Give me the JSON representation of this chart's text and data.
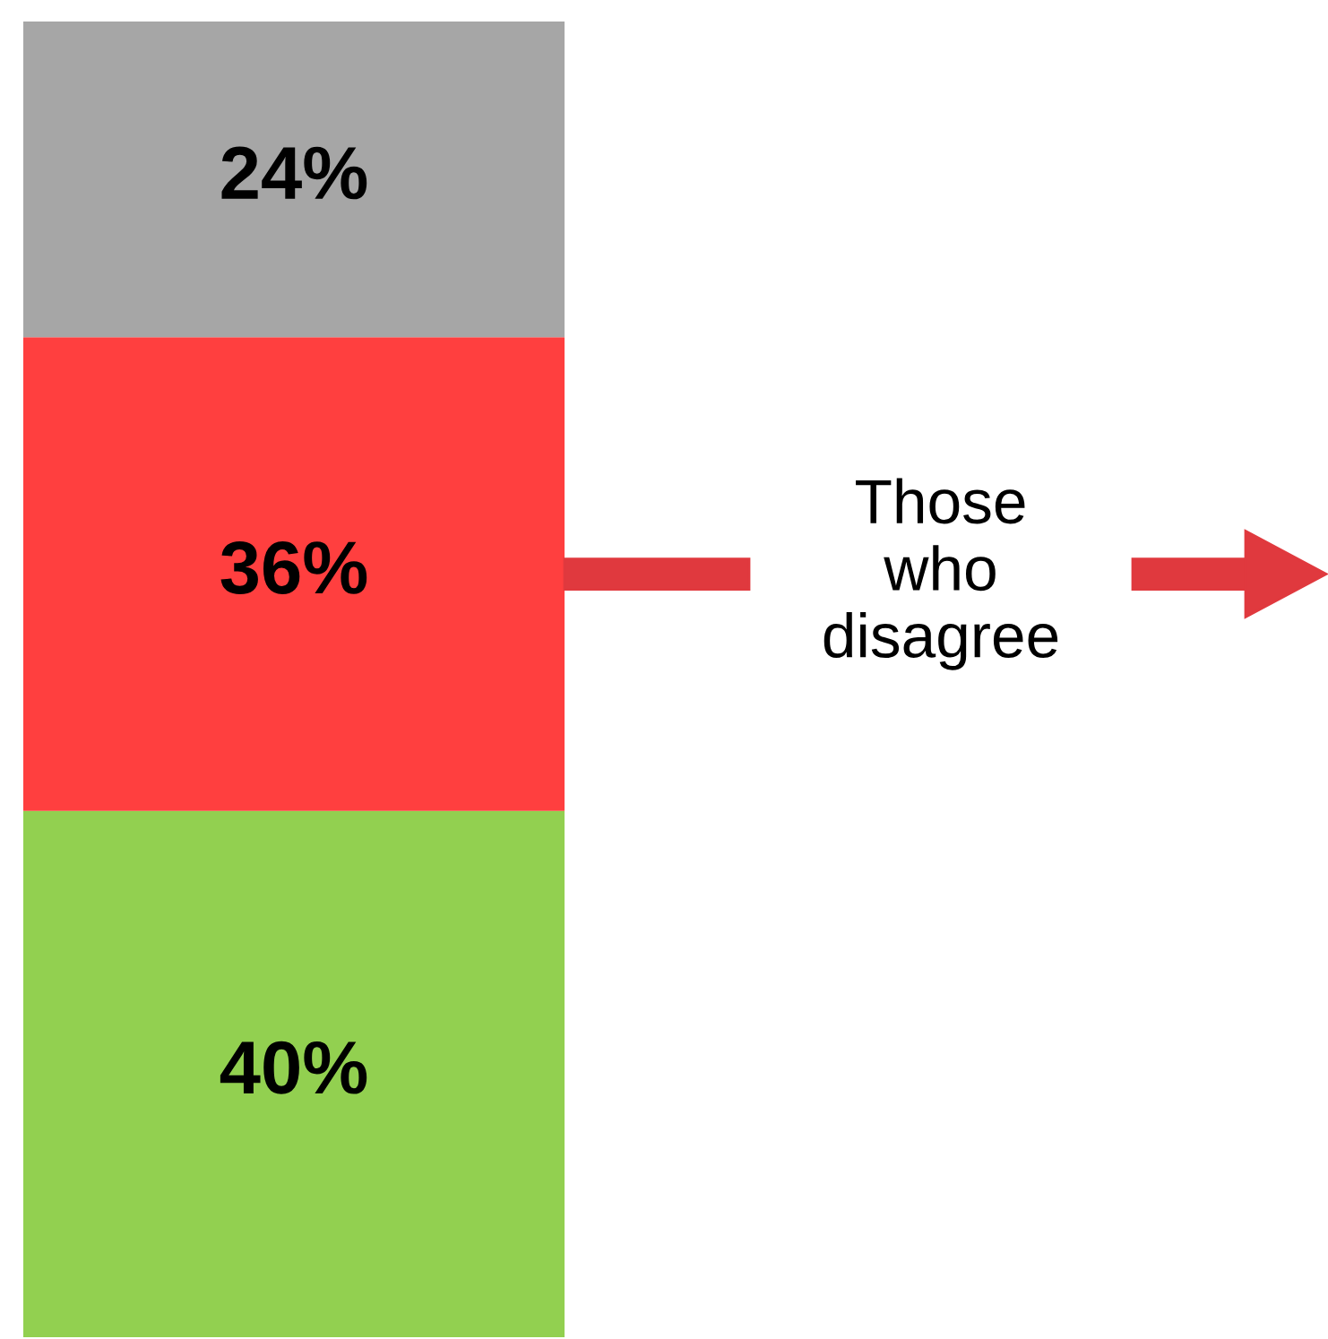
{
  "chart_data": {
    "type": "bar",
    "stacked": true,
    "categories": [
      null
    ],
    "series": [
      {
        "color": "#92d050",
        "values": [
          40
        ],
        "value_labels": [
          "40%"
        ]
      },
      {
        "color": "#ff3f3f",
        "values": [
          36
        ],
        "value_labels": [
          "36%"
        ]
      },
      {
        "color": "#a6a6a6",
        "values": [
          24
        ],
        "value_labels": [
          "24%"
        ]
      }
    ],
    "annotations": [
      "Those\nwho\ndisagree"
    ]
  }
}
